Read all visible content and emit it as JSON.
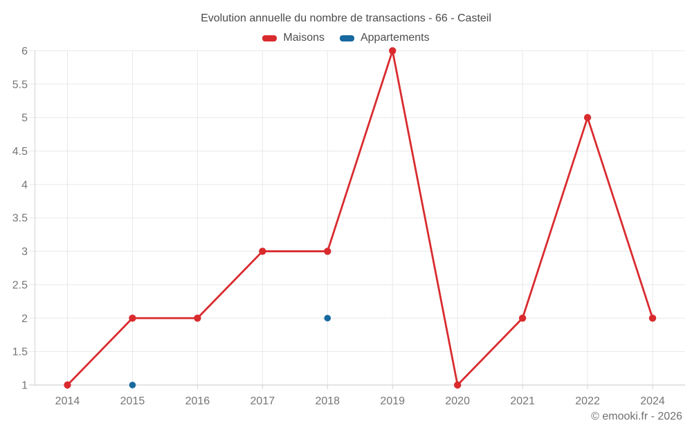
{
  "header": {
    "title": "Evolution annuelle du nombre de transactions - 66 - Casteil"
  },
  "legend": {
    "items": [
      {
        "id": "maisons",
        "label": "Maisons",
        "color": "#d92b2e"
      },
      {
        "id": "appartements",
        "label": "Appartements",
        "color": "#17699f"
      }
    ]
  },
  "footer": {
    "credit": "© emooki.fr - 2026"
  },
  "chart_data": {
    "type": "line",
    "title": "Evolution annuelle du nombre de transactions - 66 - Casteil",
    "categories": [
      "2014",
      "2015",
      "2016",
      "2017",
      "2018",
      "2019",
      "2020",
      "2021",
      "2022",
      "2024"
    ],
    "series": [
      {
        "name": "Maisons",
        "color": "#d92b2e",
        "style": "line+markers",
        "values": [
          1,
          2,
          2,
          3,
          3,
          6,
          1,
          2,
          5,
          2
        ]
      },
      {
        "name": "Appartements",
        "color": "#17699f",
        "style": "markers",
        "values": [
          null,
          1,
          null,
          null,
          2,
          null,
          null,
          null,
          null,
          null
        ]
      }
    ],
    "xlabel": "",
    "ylabel": "",
    "ylim": [
      1,
      6
    ],
    "ytick_step": 0.5,
    "yticks": [
      "1",
      "1.5",
      "2",
      "2.5",
      "3",
      "3.5",
      "4",
      "4.5",
      "5",
      "5.5",
      "6"
    ],
    "grid": true,
    "legend_position": "top",
    "colors": {
      "gridline": "#e8e8e8",
      "axis_line": "#d2d2d2",
      "tick_label": "#757575"
    }
  }
}
